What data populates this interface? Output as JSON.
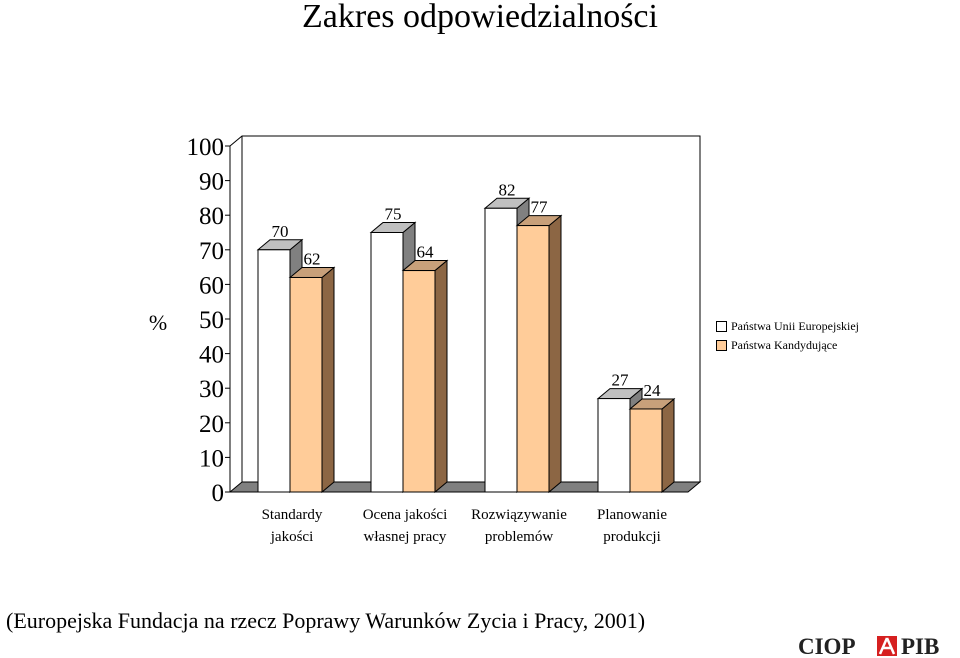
{
  "page": {
    "title": "Zakres odpowiedzialności",
    "source": "(Europejska Fundacja na rzecz Poprawy Warunków Zycia i Pracy, 2001)",
    "logo_text": "CIOP PIB"
  },
  "chart_data": {
    "type": "bar",
    "title": "Zakres odpowiedzialności",
    "ylabel": "%",
    "xlabel": "",
    "ylim": [
      0,
      100
    ],
    "yticks": [
      0,
      10,
      20,
      30,
      40,
      50,
      60,
      70,
      80,
      90,
      100
    ],
    "categories": [
      [
        "Standardy",
        "jakości"
      ],
      [
        "Ocena jakości",
        "własnej pracy"
      ],
      [
        "Rozwiązywanie",
        "problemów"
      ],
      [
        "Planowanie",
        "produkcji"
      ]
    ],
    "series": [
      {
        "name": "Państwa Unii Europejskiej",
        "values": [
          70,
          75,
          82,
          27
        ],
        "color": "#ffffff",
        "side_color": "#808080",
        "top_color": "#c0c0c0"
      },
      {
        "name": "Państwa Kandydujące",
        "values": [
          62,
          64,
          77,
          24
        ],
        "color": "#ffcc99",
        "side_color": "#8c6644",
        "top_color": "#c8a07a"
      }
    ],
    "grid": false,
    "legend": "right",
    "data_labels": true
  }
}
